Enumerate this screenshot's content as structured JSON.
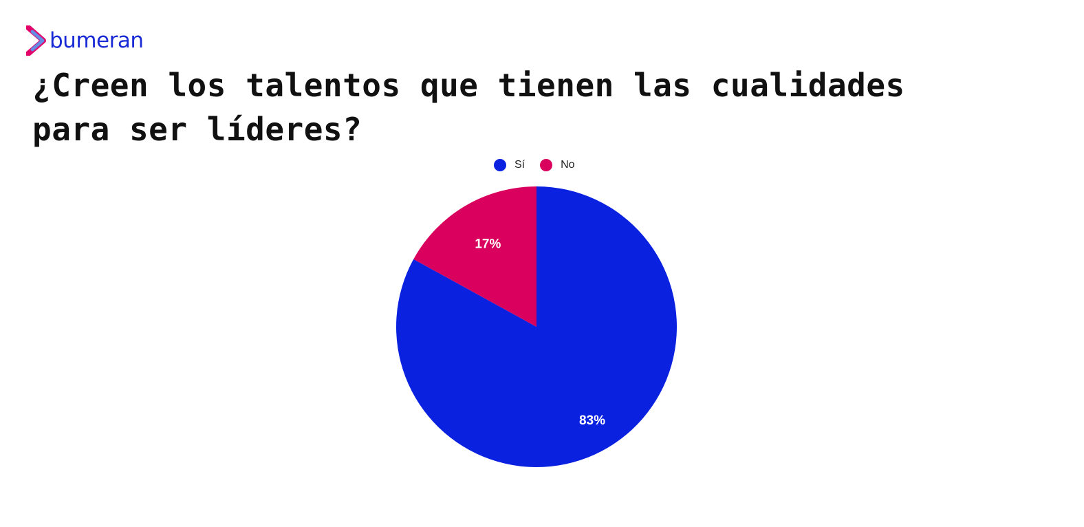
{
  "brand": {
    "name": "bumeran",
    "icon": "bumeran-chevron-logo-icon",
    "colors": [
      "#1a2bd6",
      "#e4006b",
      "#4fa3f7"
    ]
  },
  "chart_data": {
    "type": "pie",
    "title": "¿Creen los talentos que tienen las cualidades para ser líderes?",
    "legend_position": "top",
    "categories": [
      "Sí",
      "No"
    ],
    "values": [
      83,
      17
    ],
    "labels": [
      "83%",
      "17%"
    ],
    "colors": [
      "#0a22e0",
      "#d9005e"
    ]
  }
}
